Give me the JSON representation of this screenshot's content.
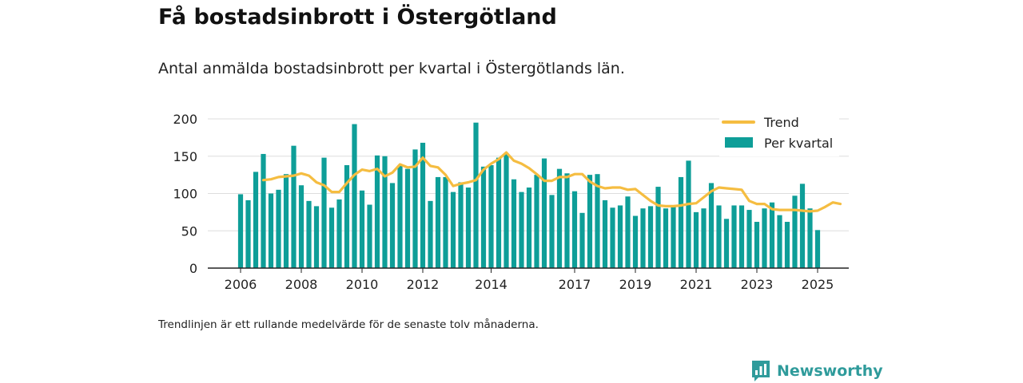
{
  "title": "Få bostadsinbrott i Östergötland",
  "subtitle": "Antal anmälda bostadsinbrott per kvartal i Östergötlands län.",
  "note": "Trendlinjen är ett rullande medelvärde för de senaste tolv månaderna.",
  "brand": "Newsworthy",
  "colors": {
    "bar": "#0e9e98",
    "trend": "#f5bd41",
    "axis": "#222222",
    "grid": "#dddddd",
    "brand": "#2f9b9b"
  },
  "chart_data": {
    "type": "bar",
    "ylim": [
      0,
      200
    ],
    "yticks": [
      0,
      50,
      100,
      150,
      200
    ],
    "xticks": [
      "2006",
      "2008",
      "2010",
      "2012",
      "2014",
      "2017",
      "2019",
      "2021",
      "2023",
      "2025"
    ],
    "grid": true,
    "legend_position": "top-right",
    "series": [
      {
        "name": "Per kvartal",
        "type": "bar",
        "values": [
          99,
          91,
          129,
          153,
          100,
          105,
          126,
          164,
          111,
          90,
          83,
          148,
          81,
          92,
          138,
          193,
          104,
          85,
          151,
          150,
          114,
          138,
          133,
          159,
          168,
          90,
          122,
          122,
          102,
          115,
          108,
          195,
          136,
          138,
          148,
          154,
          119,
          102,
          108,
          125,
          147,
          98,
          133,
          127,
          103,
          74,
          125,
          126,
          91,
          81,
          84,
          96,
          70,
          80,
          83,
          109,
          80,
          84,
          122,
          144,
          75,
          80,
          114,
          84,
          66,
          84,
          84,
          78,
          62,
          80,
          88,
          71,
          62,
          97,
          113,
          80,
          51
        ]
      },
      {
        "name": "Trend",
        "type": "line",
        "start_index": 3,
        "values": [
          118,
          119,
          122,
          123,
          124,
          127,
          124,
          115,
          111,
          102,
          102,
          114,
          125,
          132,
          130,
          133,
          123,
          128,
          139,
          135,
          136,
          148,
          137,
          135,
          125,
          110,
          113,
          115,
          118,
          132,
          140,
          146,
          155,
          144,
          140,
          134,
          126,
          117,
          117,
          122,
          122,
          126,
          126,
          116,
          110,
          107,
          108,
          108,
          105,
          106,
          98,
          90,
          84,
          83,
          83,
          84,
          86,
          87,
          95,
          103,
          108,
          107,
          106,
          105,
          90,
          86,
          86,
          79,
          78,
          78,
          78,
          77,
          76,
          77,
          82,
          88,
          86
        ]
      }
    ]
  }
}
